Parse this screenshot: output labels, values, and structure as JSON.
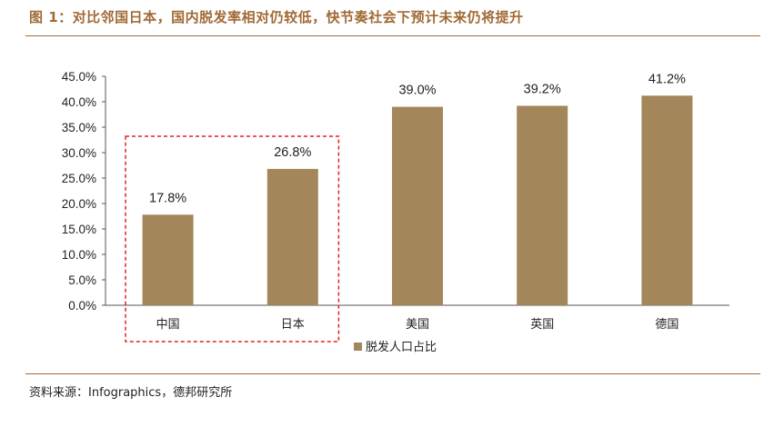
{
  "title": "图 1：对比邻国日本，国内脱发率相对仍较低，快节奏社会下预计未来仍将提升",
  "source": "资料来源：Infographics，德邦研究所",
  "colors": {
    "bar": "#a3865a",
    "rule": "#a06a35",
    "highlight_box": "#e02020"
  },
  "chart_data": {
    "type": "bar",
    "categories": [
      "中国",
      "日本",
      "美国",
      "英国",
      "德国"
    ],
    "series": [
      {
        "name": "脱发人口占比",
        "values": [
          17.8,
          26.8,
          39.0,
          39.2,
          41.2
        ]
      }
    ],
    "data_labels": [
      "17.8%",
      "26.8%",
      "39.0%",
      "39.2%",
      "41.2%"
    ],
    "yticks": [
      "0.0%",
      "5.0%",
      "10.0%",
      "15.0%",
      "20.0%",
      "25.0%",
      "30.0%",
      "35.0%",
      "40.0%",
      "45.0%"
    ],
    "ylim": [
      0,
      45
    ],
    "grid": false,
    "legend_position": "bottom",
    "highlighted_categories": [
      "中国",
      "日本"
    ]
  }
}
